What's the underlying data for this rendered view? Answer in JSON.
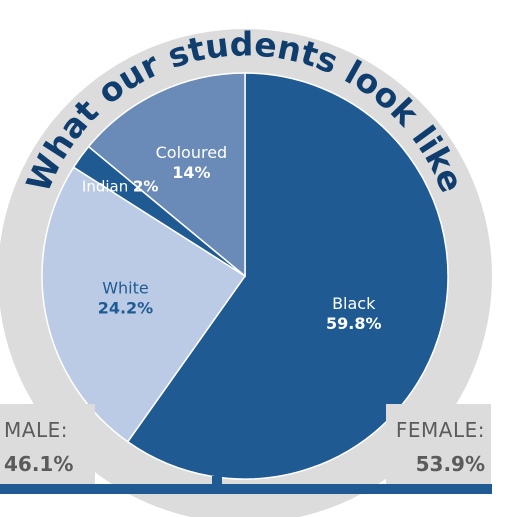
{
  "chart_data": {
    "type": "pie",
    "title": "What our students look like",
    "slices": [
      {
        "label": "Black",
        "value": 59.8,
        "value_text": "59.8%",
        "color": "#1f5b92"
      },
      {
        "label": "White",
        "value": 24.2,
        "value_text": "24.2%",
        "color": "#bccbe5"
      },
      {
        "label": "Indian",
        "value": 2,
        "value_text": "2%",
        "color": "#1f5b92"
      },
      {
        "label": "Coloured",
        "value": 14,
        "value_text": "14%",
        "color": "#6a8ab8"
      }
    ],
    "gender": {
      "male": {
        "label": "MALE:",
        "value": 46.1,
        "value_text": "46.1%"
      },
      "female": {
        "label": "FEMALE:",
        "value": 53.9,
        "value_text": "53.9%"
      }
    }
  },
  "colors": {
    "ring": "#dcdcdc",
    "title_text": "#0f3e6e",
    "label_dark_bg": "#ffffff",
    "label_light_bg": "#1f5b92",
    "accent": "#1f5b92"
  }
}
